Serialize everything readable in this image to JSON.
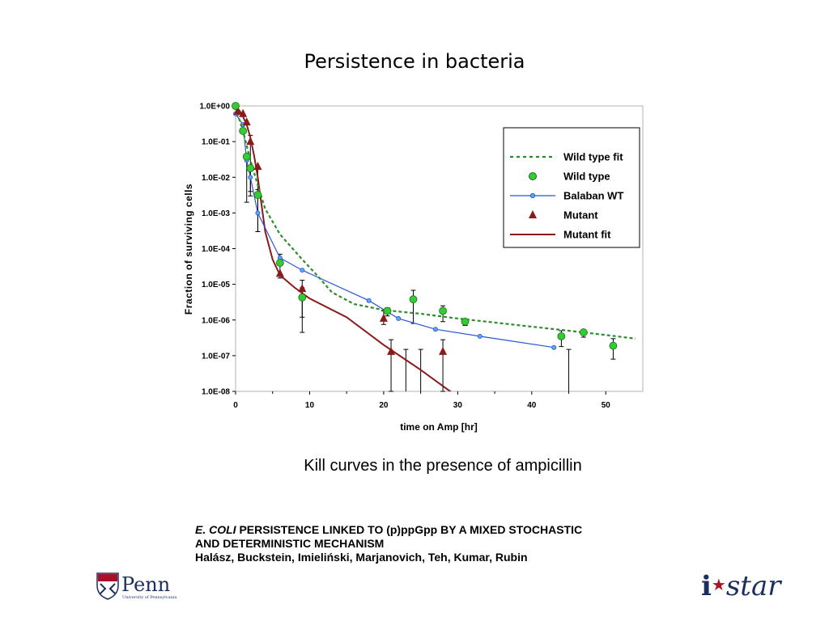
{
  "slide": {
    "title": "Persistence in bacteria",
    "caption": "Kill curves in the presence of ampicillin",
    "citation_italic": "E. COLI",
    "citation_line1": " PERSISTENCE LINKED TO  (p)ppGpp BY A MIXED STOCHASTIC",
    "citation_line2": "AND DETERMINISTIC MECHANISM",
    "citation_authors": "Halász, Buckstein, Imieliński, Marjanovich, Teh, Kumar, Rubin",
    "penn_logo_text": "Penn",
    "penn_logo_subtext": "University of Pennsylvania",
    "istar_i": "i",
    "istar_word": "star"
  },
  "colors": {
    "wild_type": "#2e8b2e",
    "wild_type_fill": "#33cc33",
    "balaban": "#2b55d4",
    "mutant": "#8b1a1a",
    "error_bars": "#000000"
  },
  "chart_data": {
    "type": "scatter",
    "title": "",
    "xlabel": "time on Amp [hr]",
    "ylabel": "Fraction of surviving cells",
    "xlim": [
      0,
      55
    ],
    "ylim": [
      1e-08,
      1
    ],
    "y_scale": "log",
    "x_ticks": [
      0,
      10,
      20,
      30,
      40,
      50
    ],
    "y_ticks": [
      1,
      0.1,
      0.01,
      0.001,
      0.0001,
      1e-05,
      1e-06,
      1e-07,
      1e-08
    ],
    "y_tick_labels": [
      "1.0E+00",
      "1.0E-01",
      "1.0E-02",
      "1.0E-03",
      "1.0E-04",
      "1.0E-05",
      "1.0E-06",
      "1.0E-07",
      "1.0E-08"
    ],
    "grid": false,
    "legend_position": "top-right",
    "series": [
      {
        "name": "Wild type fit",
        "kind": "dashed-line",
        "x": [
          0,
          1,
          2,
          3,
          4,
          6,
          9,
          11,
          13,
          16,
          20,
          25,
          30,
          35,
          40,
          45,
          50,
          54
        ],
        "y": [
          0.9,
          0.2,
          0.03,
          0.006,
          0.0013,
          0.00025,
          5e-05,
          1.8e-05,
          6e-06,
          2.8e-06,
          1.9e-06,
          1.5e-06,
          1.1e-06,
          8.5e-07,
          6.5e-07,
          5e-07,
          3.8e-07,
          3e-07
        ]
      },
      {
        "name": "Wild type",
        "kind": "markers-circle",
        "x": [
          0,
          1,
          1.5,
          2,
          3,
          6,
          9,
          20.5,
          24,
          28,
          31,
          44,
          47,
          51
        ],
        "y": [
          1,
          0.2,
          0.038,
          0.018,
          0.0032,
          4e-05,
          4.3e-06,
          1.8e-06,
          3.8e-06,
          1.8e-06,
          9e-07,
          3.5e-07,
          4.5e-07,
          1.9e-07
        ],
        "err_lo": [
          1,
          0.2,
          0.002,
          0.004,
          0.0003,
          1.5e-05,
          1.2e-06,
          1.3e-06,
          8e-07,
          9e-07,
          7e-07,
          1.8e-07,
          3.3e-07,
          8e-08
        ],
        "err_hi": [
          1,
          0.2,
          0.038,
          0.018,
          0.0045,
          7e-05,
          8e-06,
          2.2e-06,
          6.8e-06,
          2.5e-06,
          9e-07,
          5e-07,
          4.5e-07,
          3e-07
        ]
      },
      {
        "name": "Balaban WT",
        "kind": "line-markers",
        "x": [
          0,
          1,
          1.5,
          2,
          3,
          6,
          9,
          18,
          22,
          27,
          33,
          43
        ],
        "y": [
          0.6,
          0.3,
          0.03,
          0.01,
          0.001,
          5.5e-05,
          2.5e-05,
          3.5e-06,
          1.1e-06,
          5.5e-07,
          3.5e-07,
          1.7e-07
        ]
      },
      {
        "name": "Mutant",
        "kind": "markers-triangle",
        "x": [
          0.3,
          1,
          1.5,
          2,
          3,
          6,
          9,
          20,
          21,
          28
        ],
        "y": [
          0.7,
          0.6,
          0.35,
          0.1,
          0.02,
          2e-05,
          7.5e-06,
          1.1e-06,
          1.3e-07,
          1.3e-07
        ],
        "err_lo": [
          0.7,
          0.6,
          0.35,
          0.003,
          0.0003,
          2e-05,
          4.5e-07,
          7.5e-07,
          1e-08,
          1e-08
        ],
        "err_hi": [
          0.7,
          0.6,
          0.35,
          0.15,
          0.02,
          2e-05,
          1.3e-05,
          1.8e-06,
          2.8e-07,
          2.8e-07
        ]
      },
      {
        "name": "Mutant fit",
        "kind": "solid-line",
        "x": [
          0,
          0.5,
          1,
          1.5,
          2,
          2.5,
          3,
          4,
          5,
          6,
          8,
          10,
          15,
          20,
          25,
          30
        ],
        "y": [
          0.95,
          0.75,
          0.5,
          0.3,
          0.13,
          0.04,
          0.01,
          0.0003,
          5e-05,
          1.8e-05,
          8e-06,
          4e-06,
          1.2e-06,
          2e-07,
          4e-08,
          7e-09
        ]
      }
    ],
    "extra_error_bars": [
      {
        "x": 23,
        "y_low": 1e-08,
        "y_high": 1.5e-07
      },
      {
        "x": 25,
        "y_low": 1e-08,
        "y_high": 1.5e-07
      },
      {
        "x": 45,
        "y_low": 1e-08,
        "y_high": 1.5e-07
      }
    ]
  }
}
